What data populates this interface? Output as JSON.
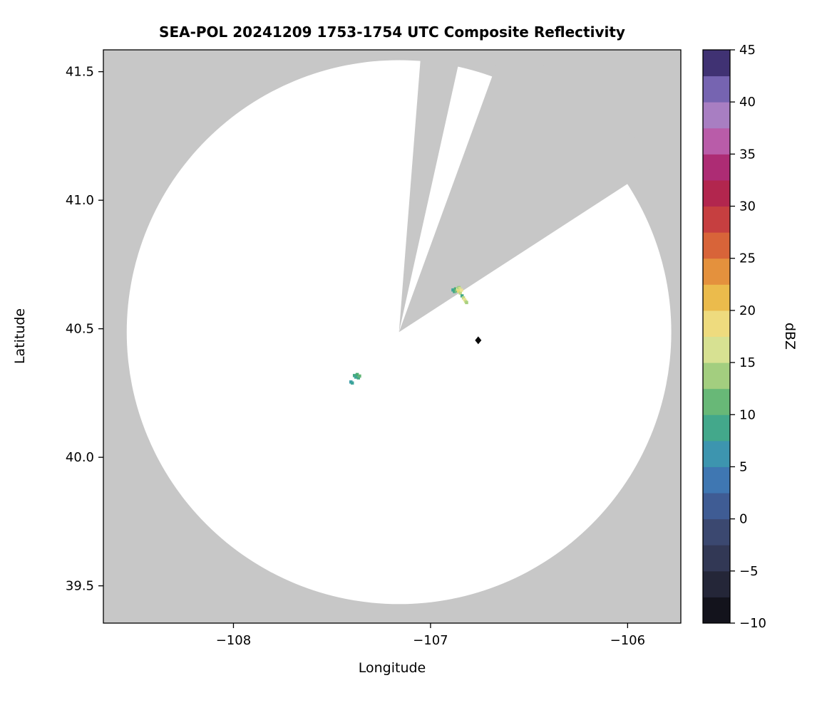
{
  "chart_data": {
    "type": "radar_ppi",
    "title": "SEA-POL 20241209 1753-1754 UTC Composite Reflectivity",
    "xlabel": "Longitude",
    "ylabel": "Latitude",
    "xlim": [
      -108.66,
      -105.73
    ],
    "ylim": [
      39.355,
      41.585
    ],
    "xticks": [
      -108,
      -107,
      -106
    ],
    "xtick_labels": [
      "−108",
      "−107",
      "−106"
    ],
    "yticks": [
      39.5,
      40.0,
      40.5,
      41.0,
      41.5
    ],
    "ytick_labels": [
      "39.5",
      "40.0",
      "40.5",
      "41.0",
      "41.5"
    ],
    "grid": false,
    "outside_scan_color": "#c7c7c7",
    "scan_area_color": "#ffffff",
    "radar": {
      "lon": -107.16,
      "lat": 40.487,
      "range_deg_lat": 1.058
    },
    "blocked_sectors_azimuth_deg": [
      {
        "from": 4.5,
        "to": 12.5
      },
      {
        "from": 20.0,
        "to": 57.0
      }
    ],
    "site_marker": {
      "lon": -106.758,
      "lat": 40.455,
      "shape": "diamond",
      "color": "#0a0a0a"
    },
    "echoes": [
      {
        "lon": -106.886,
        "lat": 40.651,
        "dbz": 8
      },
      {
        "lon": -106.879,
        "lat": 40.645,
        "dbz": 9
      },
      {
        "lon": -106.873,
        "lat": 40.655,
        "dbz": 10
      },
      {
        "lon": -106.869,
        "lat": 40.647,
        "dbz": 12
      },
      {
        "lon": -106.862,
        "lat": 40.654,
        "dbz": 17
      },
      {
        "lon": -106.857,
        "lat": 40.646,
        "dbz": 19
      },
      {
        "lon": -106.856,
        "lat": 40.66,
        "dbz": 13
      },
      {
        "lon": -106.852,
        "lat": 40.657,
        "dbz": 16
      },
      {
        "lon": -106.849,
        "lat": 40.639,
        "dbz": 15
      },
      {
        "lon": -106.843,
        "lat": 40.65,
        "dbz": 18
      },
      {
        "lon": -106.84,
        "lat": 40.628,
        "dbz": 9
      },
      {
        "lon": -106.833,
        "lat": 40.62,
        "dbz": 15
      },
      {
        "lon": -106.827,
        "lat": 40.613,
        "dbz": 18
      },
      {
        "lon": -106.822,
        "lat": 40.607,
        "dbz": 16
      },
      {
        "lon": -106.817,
        "lat": 40.602,
        "dbz": 14
      },
      {
        "lon": -107.404,
        "lat": 40.293,
        "dbz": 7
      },
      {
        "lon": -107.397,
        "lat": 40.289,
        "dbz": 8
      },
      {
        "lon": -107.386,
        "lat": 40.318,
        "dbz": 9
      },
      {
        "lon": -107.379,
        "lat": 40.312,
        "dbz": 8
      },
      {
        "lon": -107.372,
        "lat": 40.322,
        "dbz": 10
      },
      {
        "lon": -107.366,
        "lat": 40.309,
        "dbz": 9
      },
      {
        "lon": -107.36,
        "lat": 40.316,
        "dbz": 11
      }
    ],
    "colorbar": {
      "label": "dBZ",
      "min": -10,
      "max": 45,
      "segment_step": 2.5,
      "ticks": [
        -10,
        -5,
        0,
        5,
        10,
        15,
        20,
        25,
        30,
        35,
        40,
        45
      ],
      "tick_labels": [
        "−10",
        "−5",
        "0",
        "5",
        "10",
        "15",
        "20",
        "25",
        "30",
        "35",
        "40",
        "45"
      ],
      "stops": [
        {
          "v": -10.0,
          "c": "#0a0a0f"
        },
        {
          "v": -7.5,
          "c": "#1c1c29"
        },
        {
          "v": -5.0,
          "c": "#2b2f47"
        },
        {
          "v": -2.5,
          "c": "#384163"
        },
        {
          "v": 0.0,
          "c": "#3e4f7d"
        },
        {
          "v": 2.5,
          "c": "#3f68aa"
        },
        {
          "v": 5.0,
          "c": "#3e86ba"
        },
        {
          "v": 7.5,
          "c": "#3ba3a4"
        },
        {
          "v": 10.0,
          "c": "#4aad72"
        },
        {
          "v": 12.5,
          "c": "#85c27c"
        },
        {
          "v": 15.0,
          "c": "#c0d981"
        },
        {
          "v": 17.5,
          "c": "#eee8a2"
        },
        {
          "v": 20.0,
          "c": "#edce59"
        },
        {
          "v": 22.5,
          "c": "#e8a83f"
        },
        {
          "v": 25.0,
          "c": "#e0793a"
        },
        {
          "v": 27.5,
          "c": "#d04f38"
        },
        {
          "v": 30.0,
          "c": "#bb2e47"
        },
        {
          "v": 32.5,
          "c": "#a81e55"
        },
        {
          "v": 35.0,
          "c": "#b23a92"
        },
        {
          "v": 37.5,
          "c": "#c07ec0"
        },
        {
          "v": 40.0,
          "c": "#8f7ec4"
        },
        {
          "v": 42.5,
          "c": "#5c4a9e"
        },
        {
          "v": 45.0,
          "c": "#241a47"
        }
      ]
    }
  }
}
